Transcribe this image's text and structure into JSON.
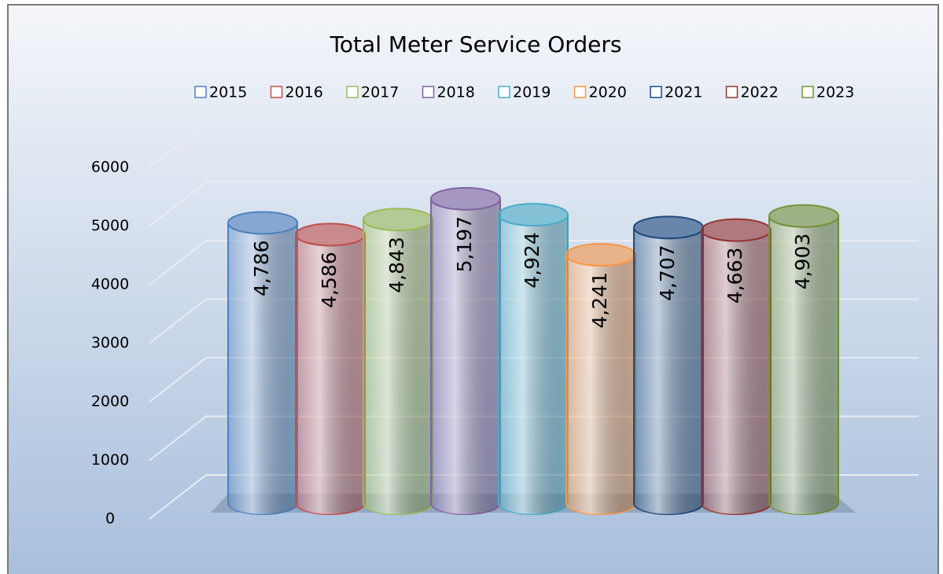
{
  "chart_data": {
    "type": "bar",
    "title": "Total Meter Service Orders",
    "categories": [
      null
    ],
    "series": [
      {
        "name": "2015",
        "color": "#4f81bd",
        "values": [
          4786
        ],
        "value_labels": [
          "4,786"
        ]
      },
      {
        "name": "2016",
        "color": "#c0504d",
        "values": [
          4586
        ],
        "value_labels": [
          "4,586"
        ]
      },
      {
        "name": "2017",
        "color": "#9bbb59",
        "values": [
          4843
        ],
        "value_labels": [
          "4,843"
        ]
      },
      {
        "name": "2018",
        "color": "#8064a2",
        "values": [
          5197
        ],
        "value_labels": [
          "5,197"
        ]
      },
      {
        "name": "2019",
        "color": "#4bacc6",
        "values": [
          4924
        ],
        "value_labels": [
          "4,924"
        ]
      },
      {
        "name": "2020",
        "color": "#f79646",
        "values": [
          4241
        ],
        "value_labels": [
          "4,241"
        ]
      },
      {
        "name": "2021",
        "color": "#1f497d",
        "values": [
          4707
        ],
        "value_labels": [
          "4,707"
        ]
      },
      {
        "name": "2022",
        "color": "#943634",
        "values": [
          4663
        ],
        "value_labels": [
          "4,663"
        ]
      },
      {
        "name": "2023",
        "color": "#76923c",
        "values": [
          4903
        ],
        "value_labels": [
          "4,903"
        ]
      }
    ],
    "ylim": [
      0,
      6000
    ],
    "yticks": [
      0,
      1000,
      2000,
      3000,
      4000,
      5000,
      6000
    ],
    "grid": true,
    "legend": "top"
  }
}
